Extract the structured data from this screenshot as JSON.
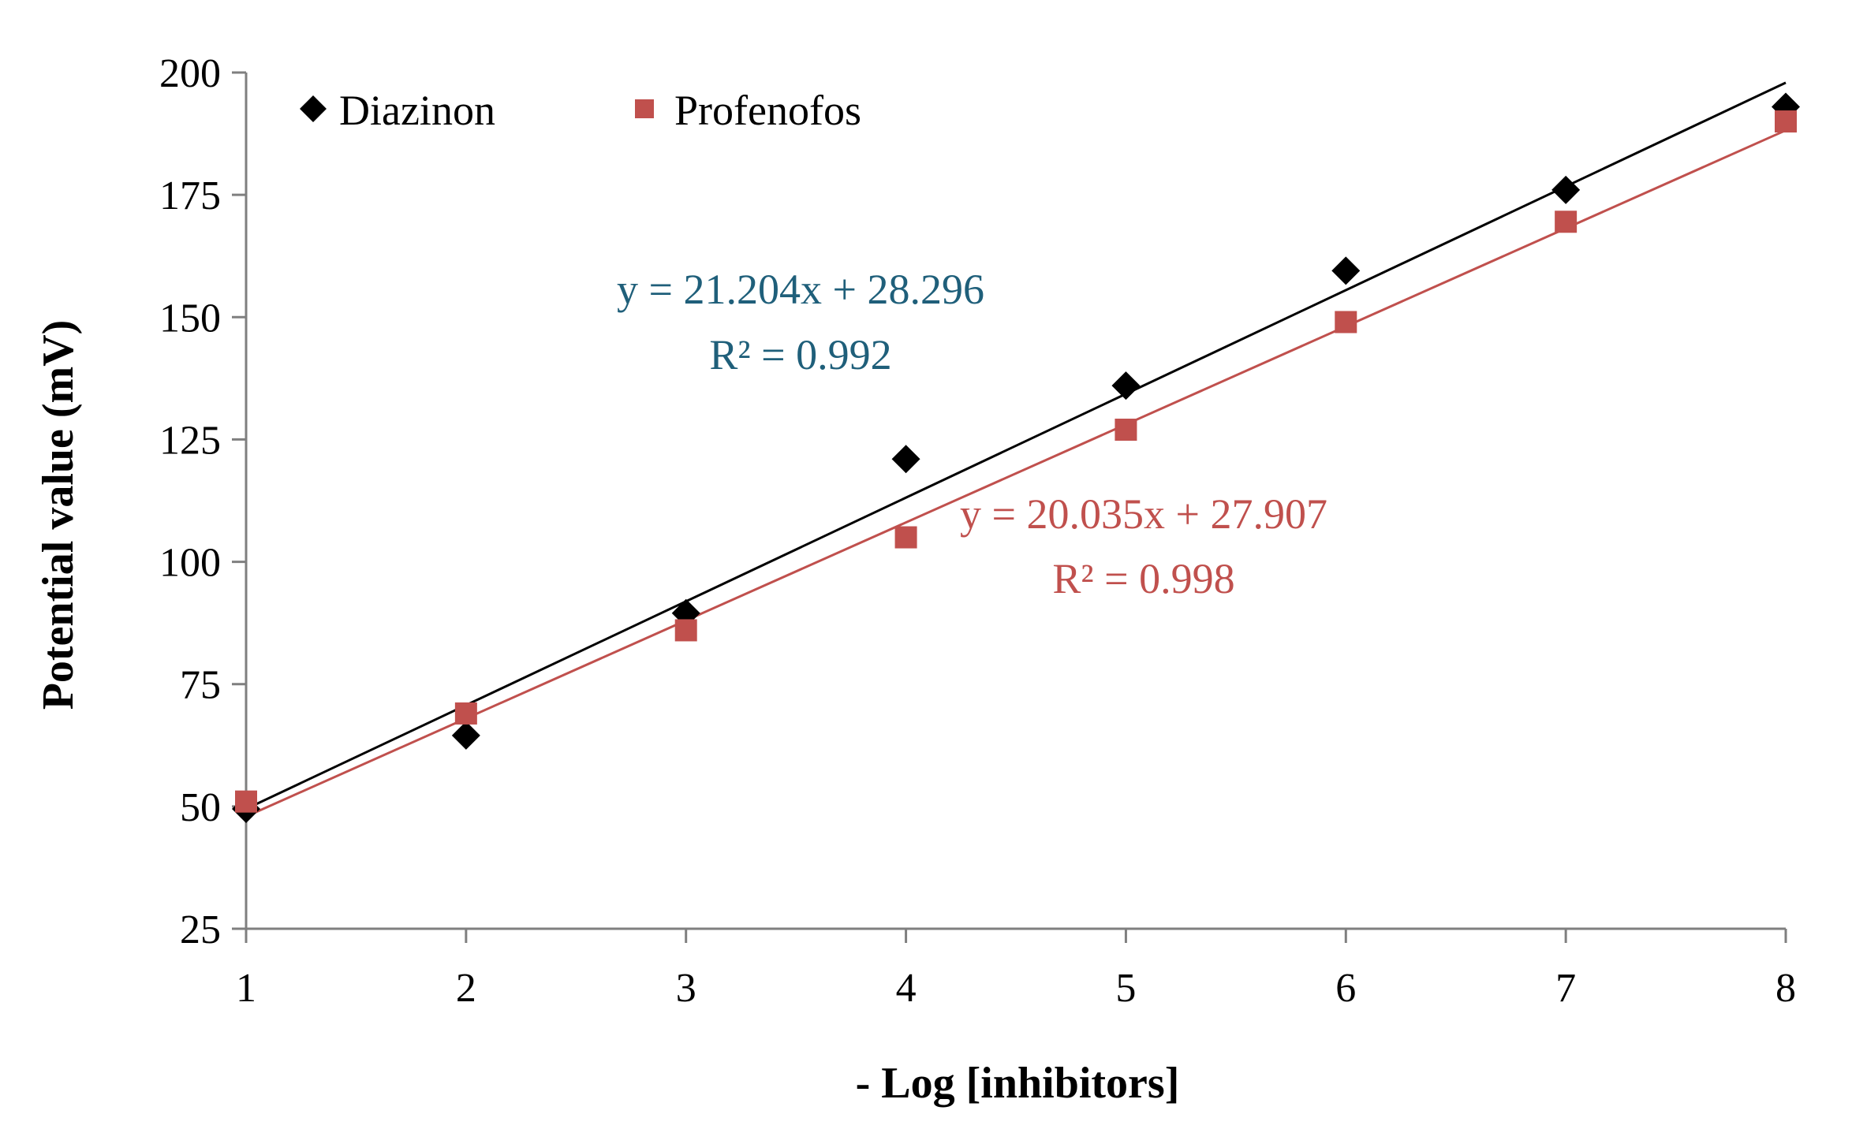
{
  "chart_data": {
    "type": "scatter",
    "title": "",
    "xlabel": "- Log [inhibitors]",
    "ylabel": "Potential value (mV)",
    "xlim": [
      1,
      8
    ],
    "ylim": [
      25,
      200
    ],
    "xticks": [
      1,
      2,
      3,
      4,
      5,
      6,
      7,
      8
    ],
    "yticks": [
      25,
      50,
      75,
      100,
      125,
      150,
      175,
      200
    ],
    "grid": false,
    "legend_position": "top-left",
    "series": [
      {
        "name": "Diazinon",
        "color": "#000000",
        "marker": "diamond",
        "x": [
          1,
          2,
          3,
          4,
          5,
          6,
          7,
          8
        ],
        "y": [
          49.5,
          64.5,
          89.5,
          121,
          136,
          159.5,
          176,
          193
        ],
        "trendline": {
          "slope": 21.204,
          "intercept": 28.296,
          "equation": "y = 21.204x + 28.296",
          "r2": "R² = 0.992",
          "label_color": "#1f5f7a"
        }
      },
      {
        "name": "Profenofos",
        "color": "#c0504d",
        "marker": "square",
        "x": [
          1,
          2,
          3,
          4,
          5,
          6,
          7,
          8
        ],
        "y": [
          51,
          69,
          86,
          105,
          127,
          149,
          169.5,
          190
        ],
        "trendline": {
          "slope": 20.035,
          "intercept": 27.907,
          "equation": "y = 20.035x + 27.907",
          "r2": "R² = 0.998",
          "label_color": "#c0504d"
        }
      }
    ]
  }
}
